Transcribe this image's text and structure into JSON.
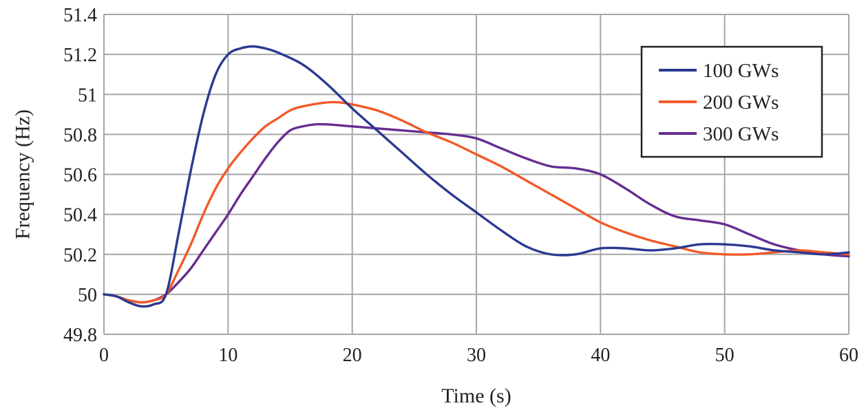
{
  "chart_data": {
    "type": "line",
    "title": "",
    "xlabel": "Time (s)",
    "ylabel": "Frequency (Hz)",
    "xlim": [
      0,
      60
    ],
    "ylim": [
      49.8,
      51.4
    ],
    "xticks": [
      0,
      10,
      20,
      30,
      40,
      50,
      60
    ],
    "xtick_labels": [
      "0",
      "10",
      "20",
      "30",
      "40",
      "50",
      "60"
    ],
    "yticks": [
      49.8,
      50,
      50.2,
      50.4,
      50.6,
      50.8,
      51,
      51.2,
      51.4
    ],
    "ytick_labels": [
      "49.8",
      "50",
      "50.2",
      "50.4",
      "50.6",
      "50.8",
      "51",
      "51.2",
      "51.4"
    ],
    "grid": true,
    "legend_position": "top-right",
    "series": [
      {
        "name": "100 GWs",
        "color": "#2b3990",
        "x": [
          0,
          1,
          2,
          3,
          4,
          5,
          6,
          7,
          8,
          9,
          10,
          11,
          12,
          13,
          14,
          16,
          18,
          20,
          22,
          24,
          26,
          28,
          30,
          32,
          34,
          36,
          38,
          40,
          42,
          44,
          46,
          48,
          50,
          52,
          54,
          56,
          58,
          60
        ],
        "y": [
          50.0,
          49.99,
          49.96,
          49.94,
          49.95,
          50.0,
          50.3,
          50.62,
          50.9,
          51.1,
          51.2,
          51.23,
          51.24,
          51.23,
          51.21,
          51.15,
          51.05,
          50.93,
          50.82,
          50.71,
          50.6,
          50.5,
          50.41,
          50.32,
          50.24,
          50.2,
          50.2,
          50.23,
          50.23,
          50.22,
          50.23,
          50.25,
          50.25,
          50.24,
          50.22,
          50.21,
          50.2,
          50.21
        ]
      },
      {
        "name": "200 GWs",
        "color": "#f05a28",
        "x": [
          0,
          1,
          2,
          3,
          4,
          5,
          6,
          7,
          8,
          9,
          10,
          11,
          12,
          13,
          14,
          15,
          16,
          18,
          19,
          20,
          22,
          24,
          26,
          28,
          30,
          32,
          34,
          36,
          38,
          40,
          42,
          44,
          46,
          48,
          50,
          52,
          54,
          56,
          58,
          60
        ],
        "y": [
          50.0,
          49.99,
          49.97,
          49.96,
          49.97,
          50.0,
          50.12,
          50.25,
          50.4,
          50.53,
          50.63,
          50.71,
          50.78,
          50.84,
          50.88,
          50.92,
          50.94,
          50.96,
          50.96,
          50.95,
          50.92,
          50.87,
          50.81,
          50.76,
          50.7,
          50.64,
          50.57,
          50.5,
          50.43,
          50.36,
          50.31,
          50.27,
          50.24,
          50.21,
          50.2,
          50.2,
          50.21,
          50.22,
          50.21,
          50.2
        ]
      },
      {
        "name": "300 GWs",
        "color": "#662d91",
        "x": [
          0,
          1,
          2,
          3,
          4,
          5,
          6,
          7,
          8,
          9,
          10,
          11,
          12,
          13,
          14,
          15,
          16,
          17,
          18,
          20,
          22,
          24,
          26,
          28,
          30,
          32,
          34,
          36,
          38,
          40,
          42,
          44,
          46,
          48,
          50,
          52,
          54,
          56,
          58,
          60
        ],
        "y": [
          50.0,
          49.99,
          49.97,
          49.96,
          49.97,
          50.0,
          50.06,
          50.13,
          50.22,
          50.31,
          50.4,
          50.5,
          50.59,
          50.68,
          50.76,
          50.82,
          50.84,
          50.85,
          50.85,
          50.84,
          50.83,
          50.82,
          50.81,
          50.8,
          50.78,
          50.73,
          50.68,
          50.64,
          50.63,
          50.6,
          50.53,
          50.45,
          50.39,
          50.37,
          50.35,
          50.3,
          50.25,
          50.22,
          50.2,
          50.19
        ]
      }
    ]
  }
}
